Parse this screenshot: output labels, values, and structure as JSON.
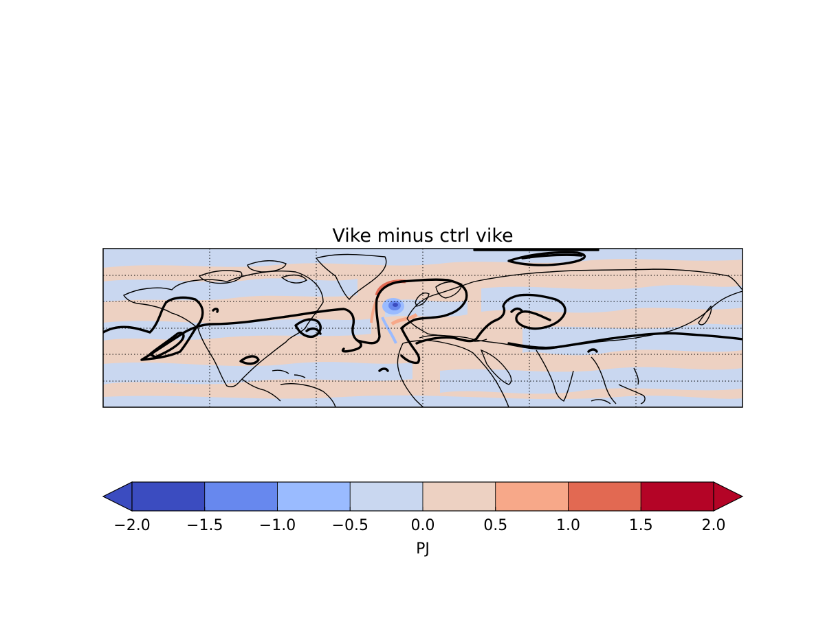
{
  "title": "Vike minus ctrl vike",
  "colorbar": {
    "label": "PJ",
    "ticks": [
      "−2.0",
      "−1.5",
      "−1.0",
      "−0.5",
      "0.0",
      "0.5",
      "1.0",
      "1.5",
      "2.0"
    ],
    "levels": [
      -2.0,
      -1.5,
      -1.0,
      -0.5,
      0.0,
      0.5,
      1.0,
      1.5,
      2.0
    ],
    "colors": [
      "#3b4cc0",
      "#6788ee",
      "#9abbff",
      "#c9d7f0",
      "#edd1c2",
      "#f7a889",
      "#e26952",
      "#b40426"
    ],
    "under_color": "#3b4cc0",
    "over_color": "#b40426",
    "extend": "both"
  },
  "map": {
    "background_positive": "#edd1c2",
    "background_negative": "#c9d7f0",
    "contour_color": "#000000",
    "coastline_color": "#000000",
    "graticule": "dotted"
  }
}
